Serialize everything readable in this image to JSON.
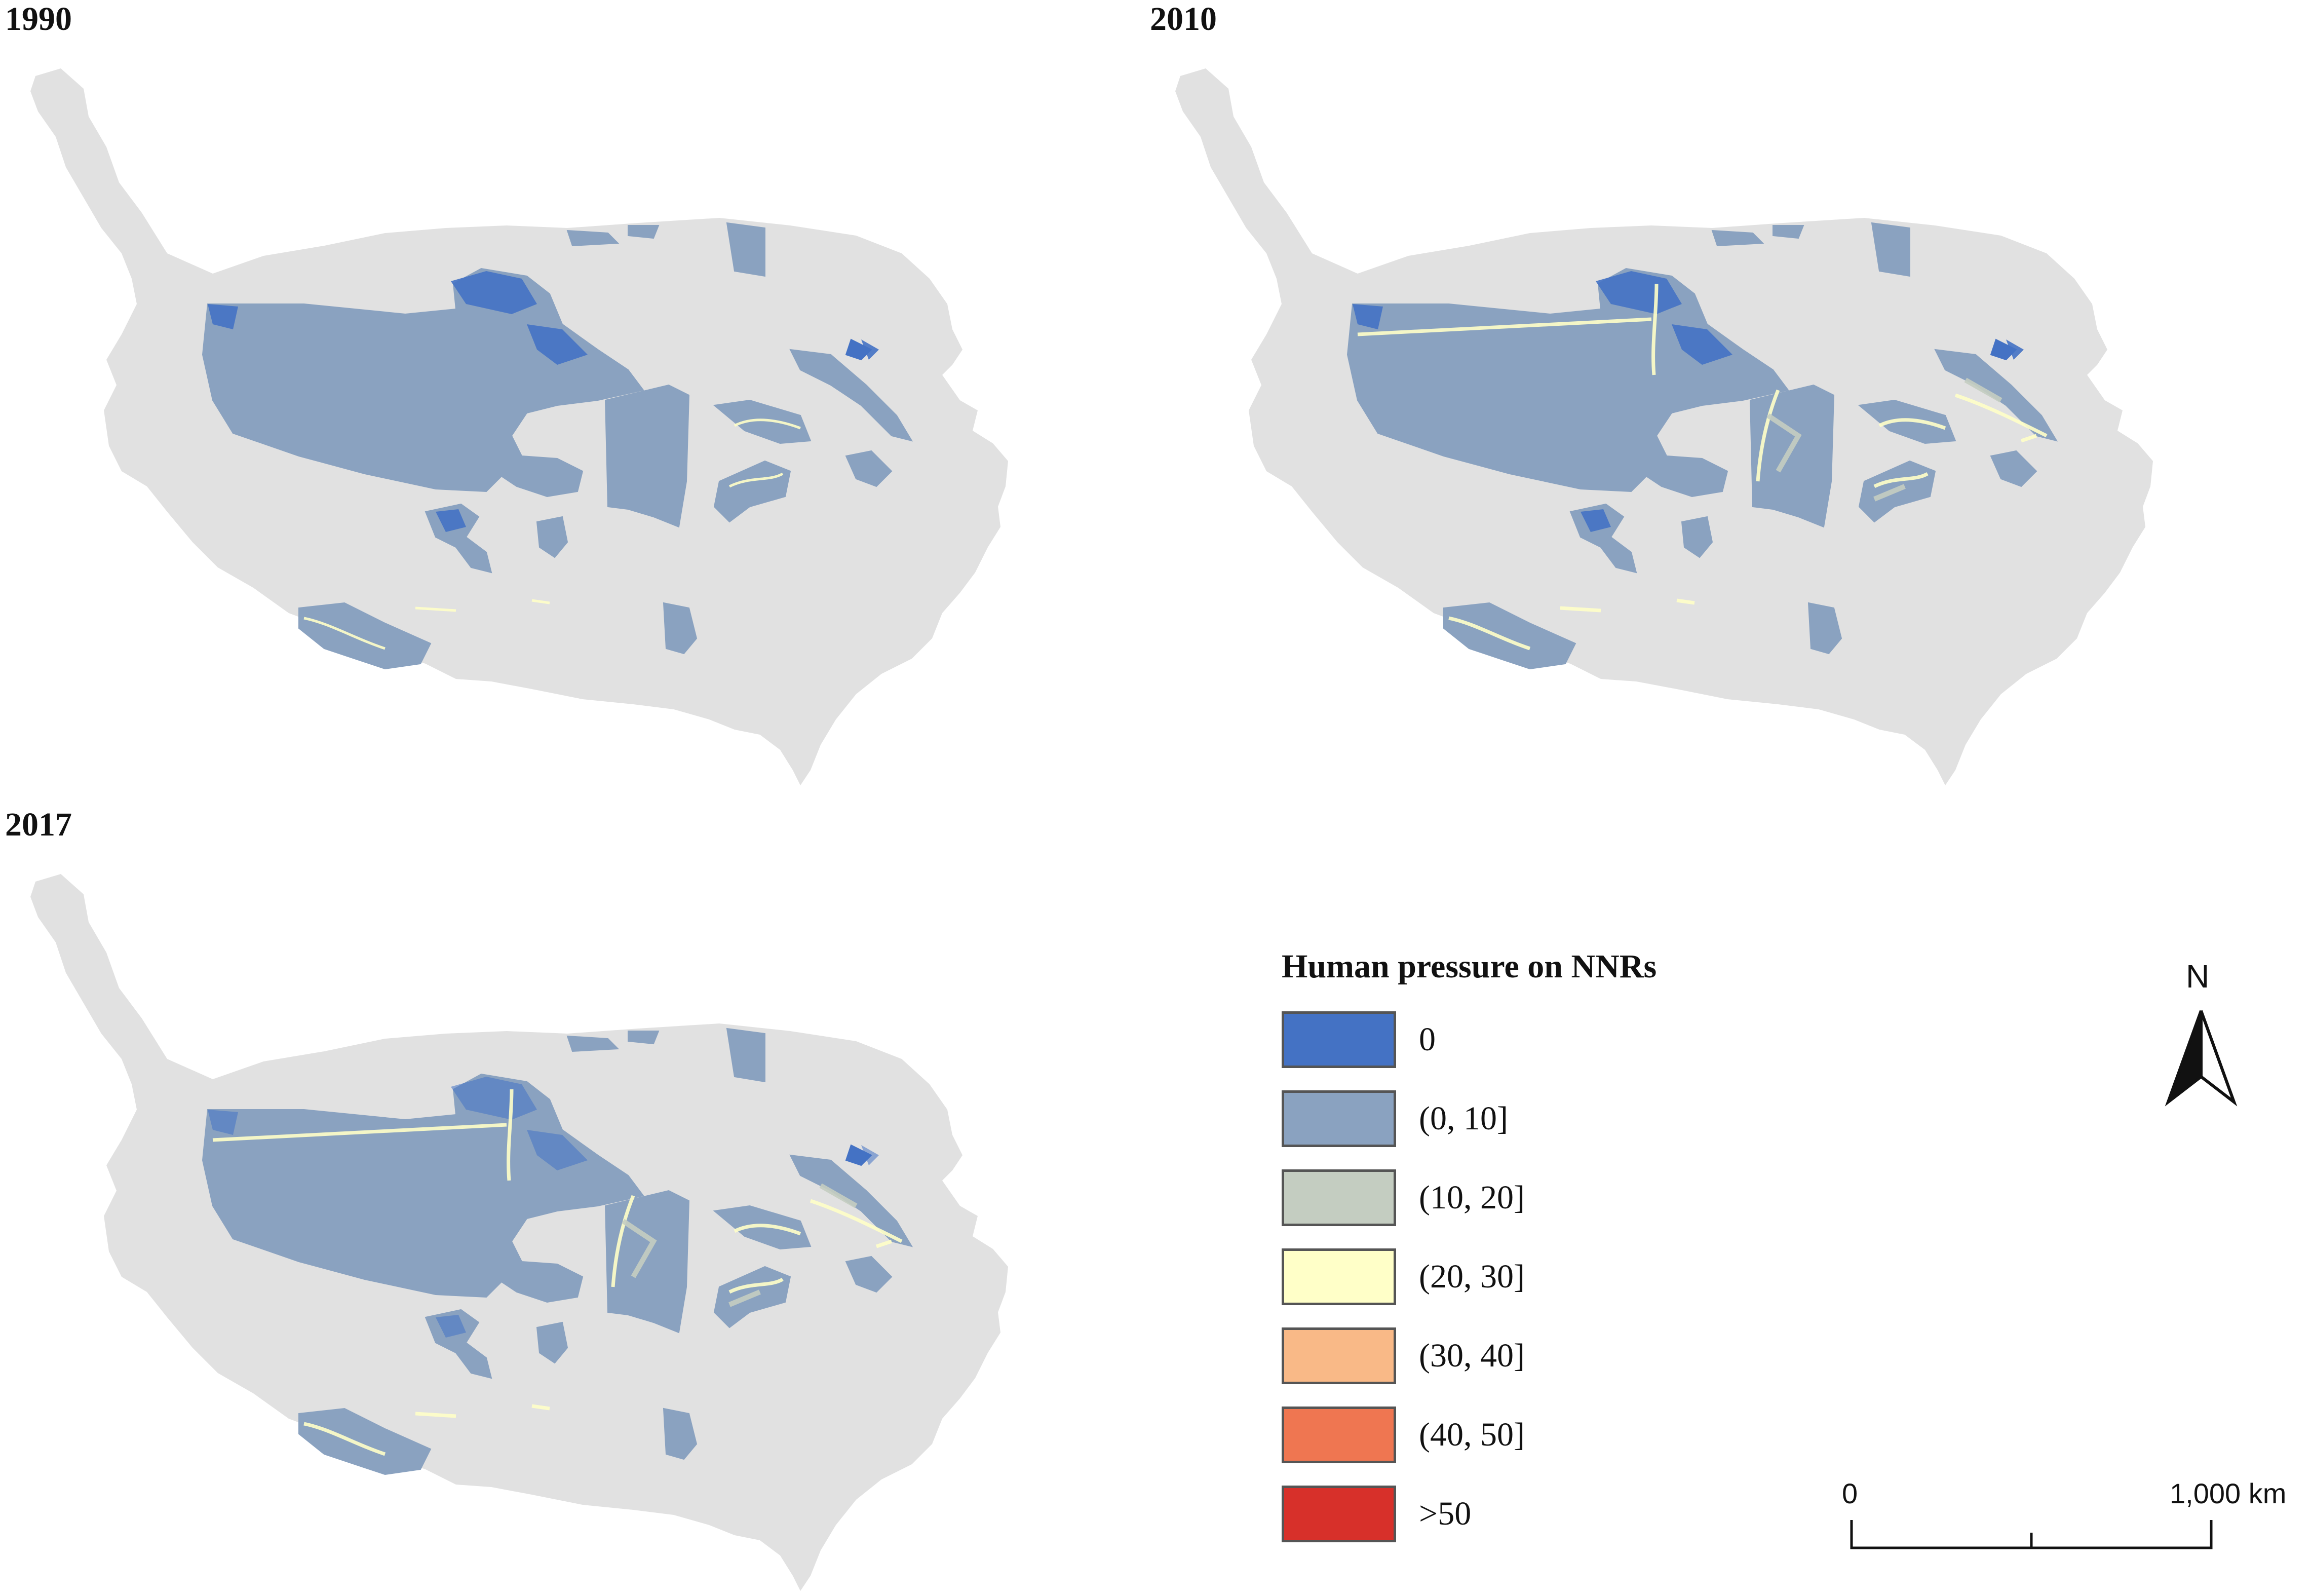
{
  "panels": [
    {
      "title": "1990",
      "variant": 0
    },
    {
      "title": "2010",
      "variant": 1
    },
    {
      "title": "2017",
      "variant": 2
    }
  ],
  "legend": {
    "title": "Human pressure on NNRs",
    "items": [
      {
        "label": "0",
        "color": "#4472c4"
      },
      {
        "label": "(0, 10]",
        "color": "#8aa2c0"
      },
      {
        "label": "(10, 20]",
        "color": "#c4cdc1"
      },
      {
        "label": "(20, 30]",
        "color": "#ffffc8"
      },
      {
        "label": "(30, 40]",
        "color": "#f9b987"
      },
      {
        "label": "(40, 50]",
        "color": "#ef7651"
      },
      {
        "label": ">50",
        "color": "#d7302a"
      }
    ]
  },
  "north_arrow": {
    "label": "N"
  },
  "scale_bar": {
    "start_label": "0",
    "end_label": "1,000 km"
  },
  "colors": {
    "plateau": "#e1e1e1"
  }
}
